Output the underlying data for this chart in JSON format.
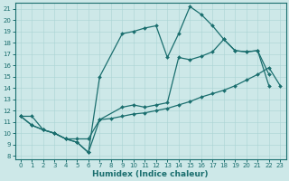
{
  "xlabel": "Humidex (Indice chaleur)",
  "background_color": "#cde8e8",
  "line_color": "#1a6e6e",
  "xlim": [
    -0.5,
    23.5
  ],
  "ylim": [
    7.7,
    21.5
  ],
  "xticks": [
    0,
    1,
    2,
    3,
    4,
    5,
    6,
    7,
    8,
    9,
    10,
    11,
    12,
    13,
    14,
    15,
    16,
    17,
    18,
    19,
    20,
    21,
    22,
    23
  ],
  "yticks": [
    8,
    9,
    10,
    11,
    12,
    13,
    14,
    15,
    16,
    17,
    18,
    19,
    20,
    21
  ],
  "lines": [
    {
      "x": [
        0,
        1,
        2,
        3,
        4,
        5,
        6,
        7,
        9,
        10,
        11,
        12,
        13,
        14,
        15,
        16,
        17,
        18,
        19,
        20,
        21,
        22
      ],
      "y": [
        11.5,
        10.7,
        10.3,
        10.0,
        9.5,
        9.2,
        8.3,
        15.0,
        18.8,
        19.0,
        19.3,
        19.5,
        16.7,
        18.8,
        21.2,
        20.5,
        19.5,
        18.3,
        17.3,
        17.2,
        17.3,
        14.2
      ]
    },
    {
      "x": [
        0,
        1,
        2,
        3,
        4,
        5,
        6,
        7,
        8,
        9,
        10,
        11,
        12,
        13,
        14,
        15,
        16,
        17,
        18,
        19,
        20,
        21,
        22,
        23
      ],
      "y": [
        11.5,
        11.5,
        10.3,
        10.0,
        9.5,
        9.5,
        9.5,
        11.2,
        11.3,
        11.5,
        11.7,
        11.8,
        12.0,
        12.2,
        12.5,
        12.8,
        13.2,
        13.5,
        13.8,
        14.2,
        14.7,
        15.2,
        15.8,
        14.2
      ]
    },
    {
      "x": [
        0,
        1,
        2,
        3,
        4,
        5,
        6,
        7,
        9,
        10,
        11,
        12,
        13,
        14,
        15,
        16,
        17,
        18,
        19,
        20,
        21,
        22
      ],
      "y": [
        11.5,
        10.7,
        10.3,
        10.0,
        9.5,
        9.2,
        8.3,
        11.2,
        12.3,
        12.5,
        12.3,
        12.5,
        12.7,
        16.7,
        16.5,
        16.8,
        17.2,
        18.3,
        17.3,
        17.2,
        17.3,
        15.2
      ]
    }
  ]
}
